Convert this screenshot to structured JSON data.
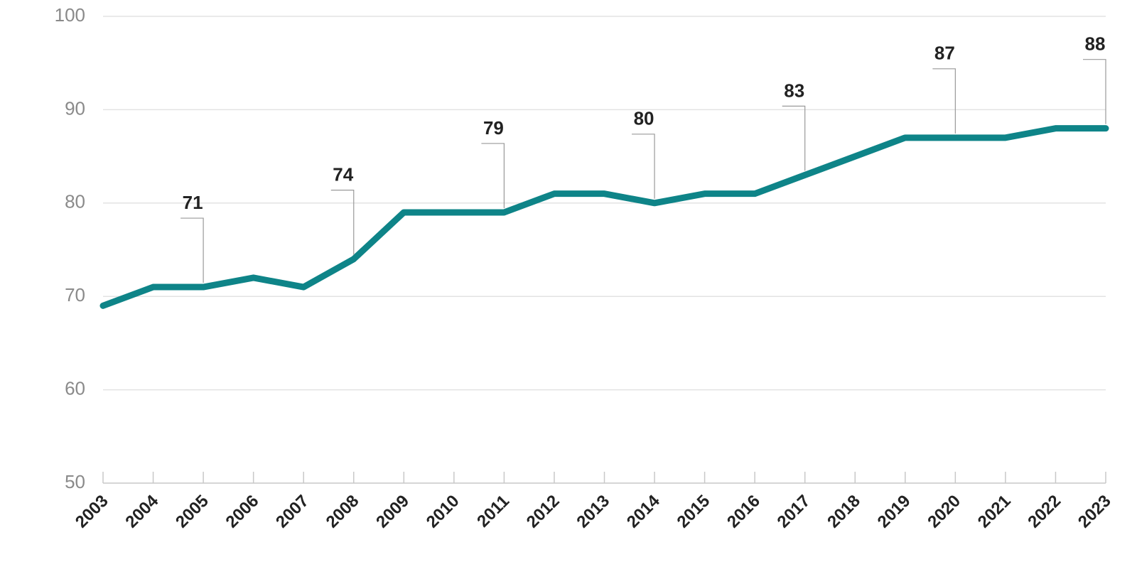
{
  "chart_data": {
    "type": "line",
    "x": [
      2003,
      2004,
      2005,
      2006,
      2007,
      2008,
      2009,
      2010,
      2011,
      2012,
      2013,
      2014,
      2015,
      2016,
      2017,
      2018,
      2019,
      2020,
      2021,
      2022,
      2023
    ],
    "series": [
      {
        "color": "#0e8488",
        "values": [
          69,
          71,
          71,
          72,
          71,
          74,
          79,
          79,
          79,
          81,
          81,
          80,
          81,
          81,
          83,
          85,
          87,
          87,
          87,
          88,
          88
        ],
        "value_labels": [
          null,
          null,
          "71",
          null,
          null,
          "74",
          null,
          null,
          "79",
          null,
          null,
          "80",
          null,
          null,
          "83",
          null,
          null,
          "87",
          null,
          null,
          "88"
        ]
      }
    ],
    "xlim": [
      2003,
      2023
    ],
    "xticks": [
      2003,
      2004,
      2005,
      2006,
      2007,
      2008,
      2009,
      2010,
      2011,
      2012,
      2013,
      2014,
      2015,
      2016,
      2017,
      2018,
      2019,
      2020,
      2021,
      2022,
      2023
    ],
    "ylim": [
      50,
      100
    ],
    "yticks": [
      50,
      60,
      70,
      80,
      90,
      100
    ],
    "grid": true
  }
}
